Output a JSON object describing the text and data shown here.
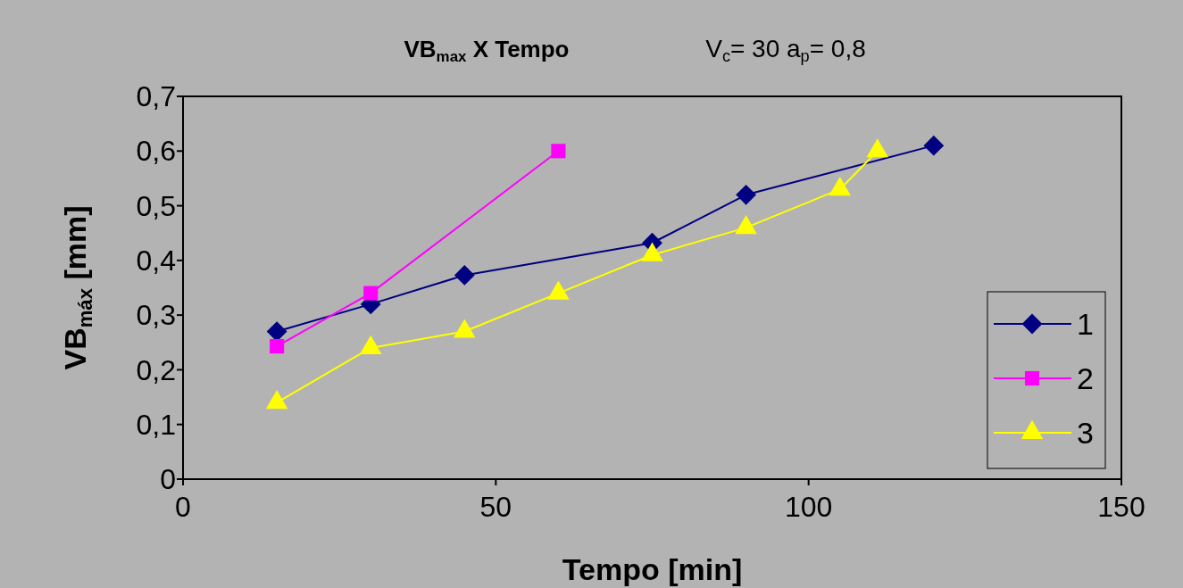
{
  "chart_data": {
    "type": "line",
    "title": "VB$_{max}$ X Tempo",
    "subtitle": "V$_{c}$= 30 a$_{p}$= 0,8",
    "xlabel": "Tempo [min]",
    "ylabel": "VB$_{máx}$ [mm]",
    "xlim": [
      0,
      150
    ],
    "xticks": [
      0,
      50,
      100,
      150
    ],
    "ylim": [
      0,
      0.7
    ],
    "yticks": [
      0,
      {
        "value": 0.1,
        "label": "0,1"
      },
      {
        "value": 0.2,
        "label": "0,2"
      },
      {
        "value": 0.3,
        "label": "0,3"
      },
      {
        "value": 0.4,
        "label": "0,4"
      },
      {
        "value": 0.5,
        "label": "0,5"
      },
      {
        "value": 0.6,
        "label": "0,6"
      },
      {
        "value": 0.7,
        "label": "0,7"
      }
    ],
    "grid": false,
    "legend": "bottom right",
    "line_style": "solid",
    "series": [
      {
        "name": "1",
        "color": "#000080",
        "marker": "diamond",
        "x": [
          15,
          30,
          45,
          75,
          90,
          120
        ],
        "values": [
          0.27,
          0.32,
          0.373,
          0.432,
          0.52,
          0.61
        ]
      },
      {
        "name": "2",
        "color": "#ff00ff",
        "marker": "square",
        "x": [
          15,
          30,
          60
        ],
        "values": [
          0.243,
          0.34,
          0.6
        ]
      },
      {
        "name": "3",
        "color": "#ffff00",
        "marker": "triangle",
        "x": [
          15,
          30,
          45,
          60,
          75,
          90,
          105,
          111
        ],
        "values": [
          0.14,
          0.24,
          0.27,
          0.34,
          0.41,
          0.46,
          0.53,
          0.6
        ]
      }
    ]
  }
}
